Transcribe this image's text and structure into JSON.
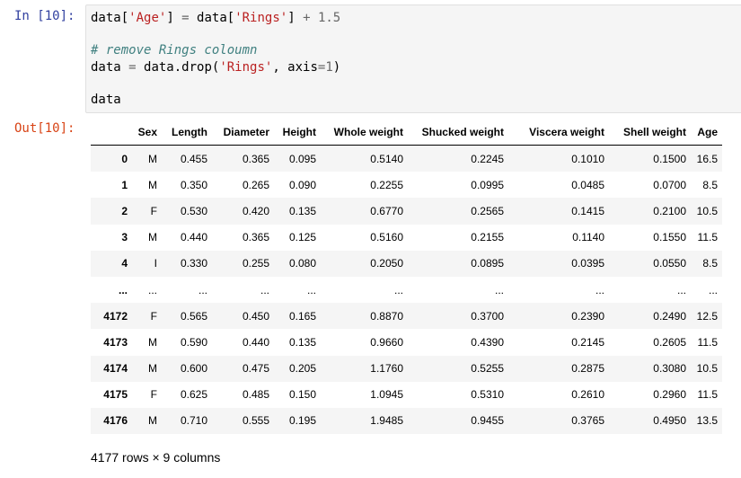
{
  "input_prompt": "In [10]:",
  "output_prompt": "Out[10]:",
  "code": {
    "line1": {
      "a": "data[",
      "b": "'Age'",
      "c": "] ",
      "d": "=",
      "e": " data[",
      "f": "'Rings'",
      "g": "] ",
      "h": "+",
      "i": " ",
      "j": "1.5"
    },
    "comment": "# remove Rings coloumn",
    "line3": {
      "a": "data ",
      "b": "=",
      "c": " data.drop(",
      "d": "'Rings'",
      "e": ", axis",
      "f": "=",
      "g": "1",
      "h": ")"
    },
    "line5": "data"
  },
  "table": {
    "columns": [
      "",
      "Sex",
      "Length",
      "Diameter",
      "Height",
      "Whole weight",
      "Shucked weight",
      "Viscera weight",
      "Shell weight",
      "Age"
    ],
    "rows": [
      [
        "0",
        "M",
        "0.455",
        "0.365",
        "0.095",
        "0.5140",
        "0.2245",
        "0.1010",
        "0.1500",
        "16.5"
      ],
      [
        "1",
        "M",
        "0.350",
        "0.265",
        "0.090",
        "0.2255",
        "0.0995",
        "0.0485",
        "0.0700",
        "8.5"
      ],
      [
        "2",
        "F",
        "0.530",
        "0.420",
        "0.135",
        "0.6770",
        "0.2565",
        "0.1415",
        "0.2100",
        "10.5"
      ],
      [
        "3",
        "M",
        "0.440",
        "0.365",
        "0.125",
        "0.5160",
        "0.2155",
        "0.1140",
        "0.1550",
        "11.5"
      ],
      [
        "4",
        "I",
        "0.330",
        "0.255",
        "0.080",
        "0.2050",
        "0.0895",
        "0.0395",
        "0.0550",
        "8.5"
      ],
      [
        "...",
        "...",
        "...",
        "...",
        "...",
        "...",
        "...",
        "...",
        "...",
        "..."
      ],
      [
        "4172",
        "F",
        "0.565",
        "0.450",
        "0.165",
        "0.8870",
        "0.3700",
        "0.2390",
        "0.2490",
        "12.5"
      ],
      [
        "4173",
        "M",
        "0.590",
        "0.440",
        "0.135",
        "0.9660",
        "0.4390",
        "0.2145",
        "0.2605",
        "11.5"
      ],
      [
        "4174",
        "M",
        "0.600",
        "0.475",
        "0.205",
        "1.1760",
        "0.5255",
        "0.2875",
        "0.3080",
        "10.5"
      ],
      [
        "4175",
        "F",
        "0.625",
        "0.485",
        "0.150",
        "1.0945",
        "0.5310",
        "0.2610",
        "0.2960",
        "11.5"
      ],
      [
        "4176",
        "M",
        "0.710",
        "0.555",
        "0.195",
        "1.9485",
        "0.9455",
        "0.3765",
        "0.4950",
        "13.5"
      ]
    ]
  },
  "shape_info": "4177 rows × 9 columns"
}
